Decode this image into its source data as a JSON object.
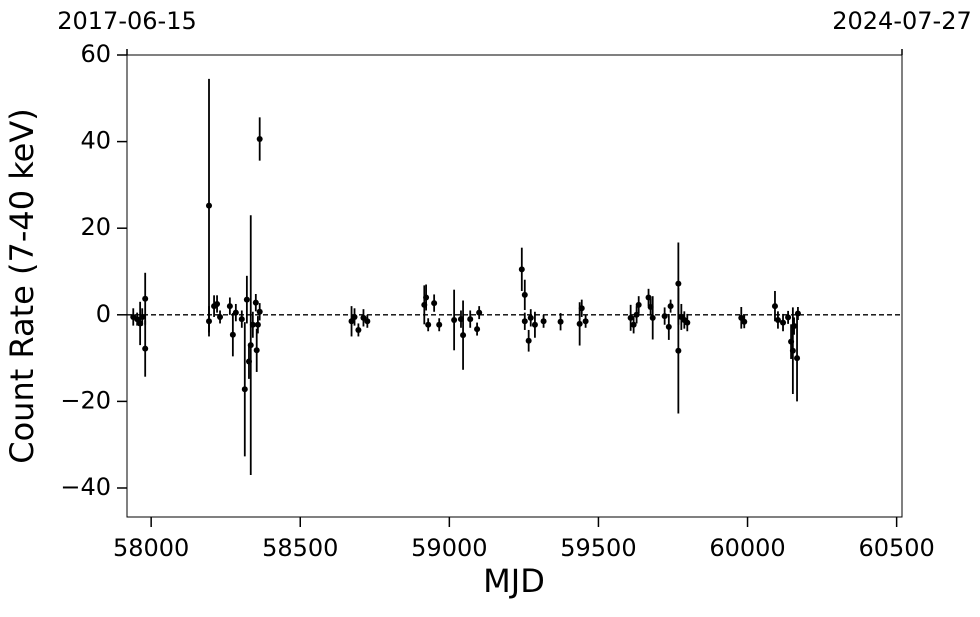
{
  "chart_data": {
    "type": "scatter",
    "xlabel": "MJD",
    "ylabel": "Count Rate (7-40 keV)",
    "xlim": [
      57919,
      60518
    ],
    "ylim": [
      -46.7,
      60
    ],
    "xticks": [
      58000,
      58500,
      59000,
      59500,
      60000,
      60500
    ],
    "yticks": [
      {
        "value": -40,
        "label": "−40"
      },
      {
        "value": -20,
        "label": "−20"
      },
      0,
      20,
      40,
      60
    ],
    "x2ticks": [
      {
        "value": 57919,
        "label": "2017-06-15"
      },
      {
        "value": 60518,
        "label": "2024-07-27"
      }
    ],
    "hline": 0,
    "color": "#000000",
    "x": [
      57940,
      57953,
      57963,
      57970,
      57980,
      57980,
      58194,
      58194,
      58211,
      58221,
      58231,
      58264,
      58274,
      58284,
      58304,
      58314,
      58321,
      58328,
      58334,
      58341,
      58351,
      58354,
      58358,
      58364,
      58364,
      58672,
      58682,
      58695,
      58712,
      58725,
      58916,
      58922,
      58929,
      58949,
      58966,
      59016,
      59039,
      59046,
      59070,
      59093,
      59100,
      59243,
      59253,
      59253,
      59266,
      59273,
      59287,
      59316,
      59373,
      59437,
      59444,
      59457,
      59608,
      59618,
      59628,
      59635,
      59668,
      59675,
      59682,
      59722,
      59736,
      59742,
      59768,
      59768,
      59778,
      59788,
      59798,
      59979,
      59989,
      60092,
      60102,
      60119,
      60136,
      60146,
      60152,
      60156,
      60166,
      60169
    ],
    "values": [
      -0.5,
      -1,
      -2,
      -0.5,
      3.7,
      -7.8,
      25.2,
      -1.5,
      2,
      2.5,
      -0.5,
      2,
      -4.6,
      0.5,
      -1,
      -17.2,
      3.5,
      -10.8,
      -7,
      -2.3,
      2.8,
      -8.2,
      -2.3,
      40.6,
      0.7,
      -1.5,
      -0.5,
      -3.5,
      -0.7,
      -1.5,
      2.3,
      4,
      -2.3,
      2.7,
      -2.3,
      -1.2,
      -1,
      -4.7,
      -1,
      -3.3,
      0.5,
      10.5,
      4.6,
      -1.5,
      -6,
      -0.7,
      -2.3,
      -1.5,
      -1.6,
      -2.1,
      1.5,
      -1.5,
      -0.7,
      -2.3,
      0,
      2.3,
      4,
      1.8,
      -0.7,
      -0.3,
      -2.8,
      2,
      7.2,
      -8.3,
      -0.5,
      -1.2,
      -1.8,
      -0.7,
      -1.6,
      2,
      -1.2,
      -1.8,
      -0.6,
      -6.2,
      -8.3,
      -2.6,
      -10,
      0.3
    ],
    "errors": [
      2,
      1.5,
      5,
      2,
      6,
      6.5,
      29.3,
      3.5,
      2.5,
      2,
      1.5,
      2,
      5,
      2,
      2,
      15.5,
      5.5,
      4,
      30,
      3,
      2,
      5,
      2,
      5,
      2,
      3.5,
      2,
      1.5,
      2,
      1.5,
      4.5,
      3,
      1.5,
      2,
      1.5,
      7,
      2,
      8,
      2,
      1.5,
      1.5,
      5,
      3.5,
      2,
      2.5,
      2,
      3,
      1.5,
      2,
      5,
      2,
      1.5,
      3,
      2,
      2,
      2,
      2,
      2,
      5,
      2,
      3,
      1.5,
      9.5,
      14.5,
      3,
      2,
      2,
      2.5,
      1.5,
      3.5,
      2,
      2,
      1.5,
      4,
      10,
      2,
      10,
      1.5
    ]
  }
}
